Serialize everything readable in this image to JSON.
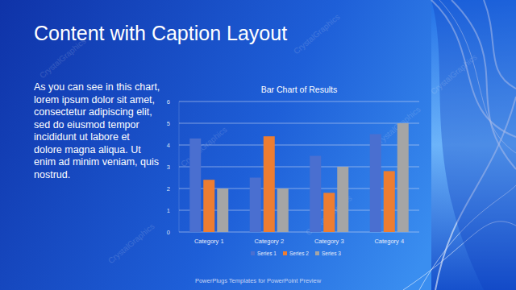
{
  "slide": {
    "title": "Content with Caption Layout",
    "caption": [
      "As you can see in this chart,",
      "lorem ipsum dolor sit amet,",
      "consectetur adipiscing elit,",
      "sed do eiusmod tempor",
      "incididunt ut labore et",
      "dolore magna aliqua. Ut",
      "enim ad minim veniam, quis",
      "nostrud."
    ],
    "footer": "PowerPlugs Templates for PowerPoint Preview",
    "watermark": "CrystalGraphics"
  },
  "chart_data": {
    "type": "bar",
    "title": "Bar Chart of Results",
    "categories": [
      "Category 1",
      "Category 2",
      "Category 3",
      "Category 4"
    ],
    "series": [
      {
        "name": "Series 1",
        "color": "#4a6fd0",
        "values": [
          4.3,
          2.5,
          3.5,
          4.5
        ]
      },
      {
        "name": "Series 2",
        "color": "#ed7d31",
        "values": [
          2.4,
          4.4,
          1.8,
          2.8
        ]
      },
      {
        "name": "Series 3",
        "color": "#a5a5a5",
        "values": [
          2,
          2,
          3,
          5
        ]
      }
    ],
    "ylim": [
      0,
      6
    ],
    "yticks": [
      0,
      1,
      2,
      3,
      4,
      5,
      6
    ],
    "grid": true,
    "legend": "bottom"
  }
}
